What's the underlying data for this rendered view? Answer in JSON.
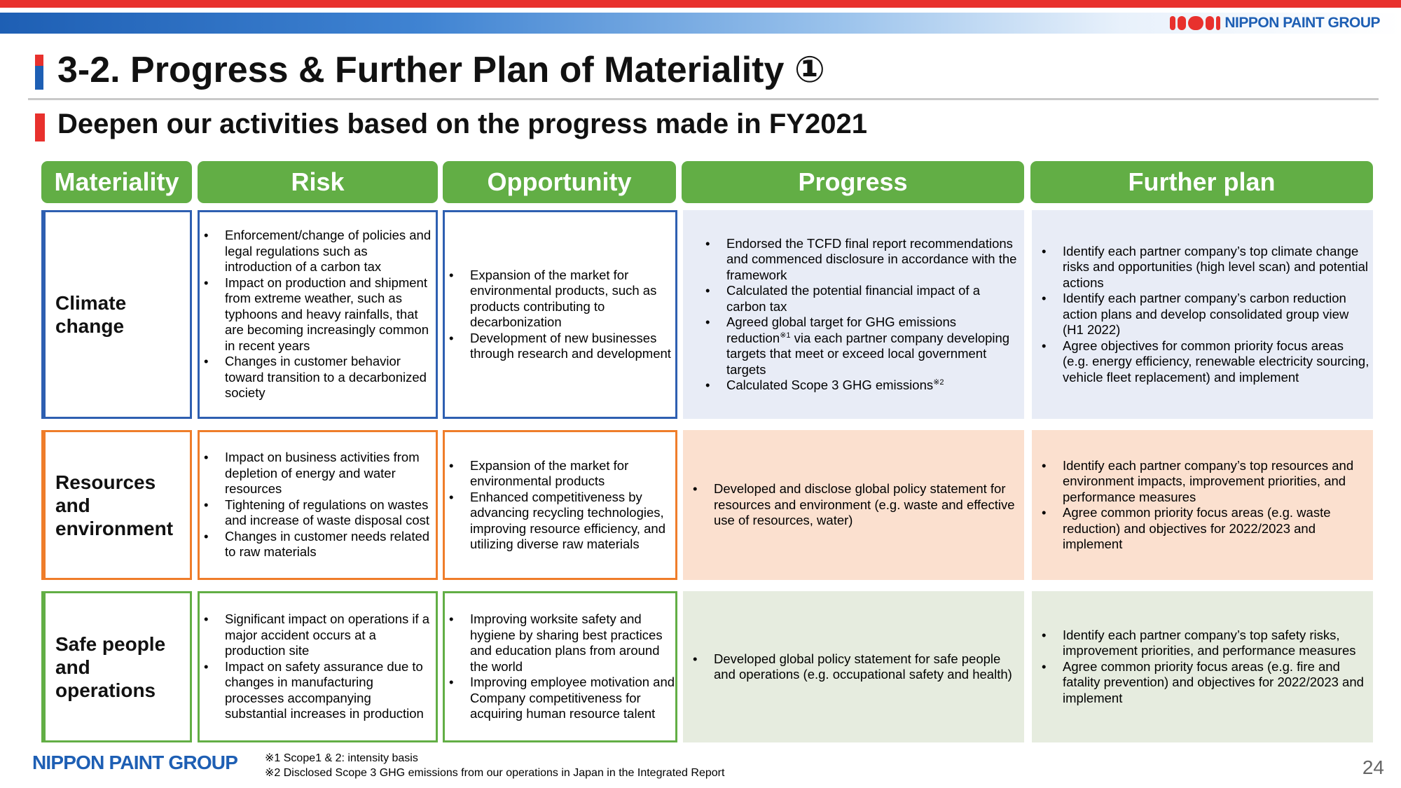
{
  "brand": {
    "logo_text": "NIPPON PAINT GROUP",
    "footer_logo": "NIPPON PAINT GROUP",
    "colors": {
      "red": "#e8312d",
      "blue": "#1e5fb4",
      "green": "#62ae45",
      "orange": "#ef7d2a"
    }
  },
  "title": "3-2. Progress & Further Plan of Materiality ①",
  "subtitle": "Deepen our activities based on the progress made in FY2021",
  "headers": {
    "materiality": "Materiality",
    "risk": "Risk",
    "opportunity": "Opportunity",
    "progress": "Progress",
    "further_plan": "Further plan"
  },
  "rows": [
    {
      "materiality": "Climate change",
      "risk": [
        "Enforcement/change of policies and legal regulations such as introduction of a carbon tax",
        "Impact on production and shipment from extreme weather, such as typhoons and heavy rainfalls, that are becoming increasingly common in recent years",
        "Changes in customer behavior toward transition to a decarbonized society"
      ],
      "opportunity": [
        "Expansion of the market for environmental products, such as products contributing to decarbonization",
        "Development of new businesses through research and development"
      ],
      "progress": [
        {
          "text": "Endorsed the TCFD final report recommendations and commenced disclosure in accordance with the framework"
        },
        {
          "text": "Calculated the potential financial impact of a carbon tax"
        },
        {
          "pre": "Agreed global target for GHG emissions reduction",
          "sup": "※1",
          "post": " via each partner company developing targets that meet or exceed local government targets"
        },
        {
          "pre": "Calculated Scope 3 GHG emissions",
          "sup": "※2",
          "post": ""
        }
      ],
      "further_plan": [
        "Identify each partner company’s top climate change risks and opportunities (high level scan) and potential actions",
        "Identify each partner company’s carbon reduction action plans and develop consolidated group view (H1 2022)",
        "Agree objectives for common priority focus areas (e.g. energy efficiency, renewable electricity sourcing, vehicle fleet replacement) and implement"
      ]
    },
    {
      "materiality": "Resources and environment",
      "risk": [
        "Impact on business activities from depletion of energy and water resources",
        "Tightening of regulations on wastes and increase of waste disposal cost",
        "Changes in customer needs related to raw materials"
      ],
      "opportunity": [
        "Expansion of the market for environmental products",
        "Enhanced competitiveness by advancing recycling technologies, improving resource efficiency, and utilizing diverse raw materials"
      ],
      "progress": [
        {
          "text": "Developed and disclose global policy statement for resources and environment (e.g. waste and effective use of resources, water)"
        }
      ],
      "further_plan": [
        "Identify each partner company’s top resources and environment impacts, improvement priorities, and performance measures",
        "Agree common priority focus areas (e.g. waste reduction) and objectives for 2022/2023 and implement"
      ]
    },
    {
      "materiality": "Safe people and operations",
      "risk": [
        "Significant impact on operations if a major accident occurs at a production site",
        "Impact on safety assurance due to changes in manufacturing processes accompanying substantial increases in production"
      ],
      "opportunity": [
        "Improving worksite safety and hygiene by sharing best practices and education plans from around the world",
        "Improving employee motivation and Company competitiveness for acquiring human resource talent"
      ],
      "progress": [
        {
          "text": "Developed global policy statement for safe people and operations (e.g. occupational safety and health)"
        }
      ],
      "further_plan": [
        "Identify each partner company’s top safety risks, improvement priorities, and performance measures",
        "Agree common priority focus areas (e.g. fire and fatality prevention) and objectives for 2022/2023 and implement"
      ]
    }
  ],
  "notes": [
    "※1  Scope1 & 2: intensity basis",
    "※2  Disclosed Scope 3 GHG emissions from our operations in Japan in the Integrated Report"
  ],
  "page_number": "24"
}
